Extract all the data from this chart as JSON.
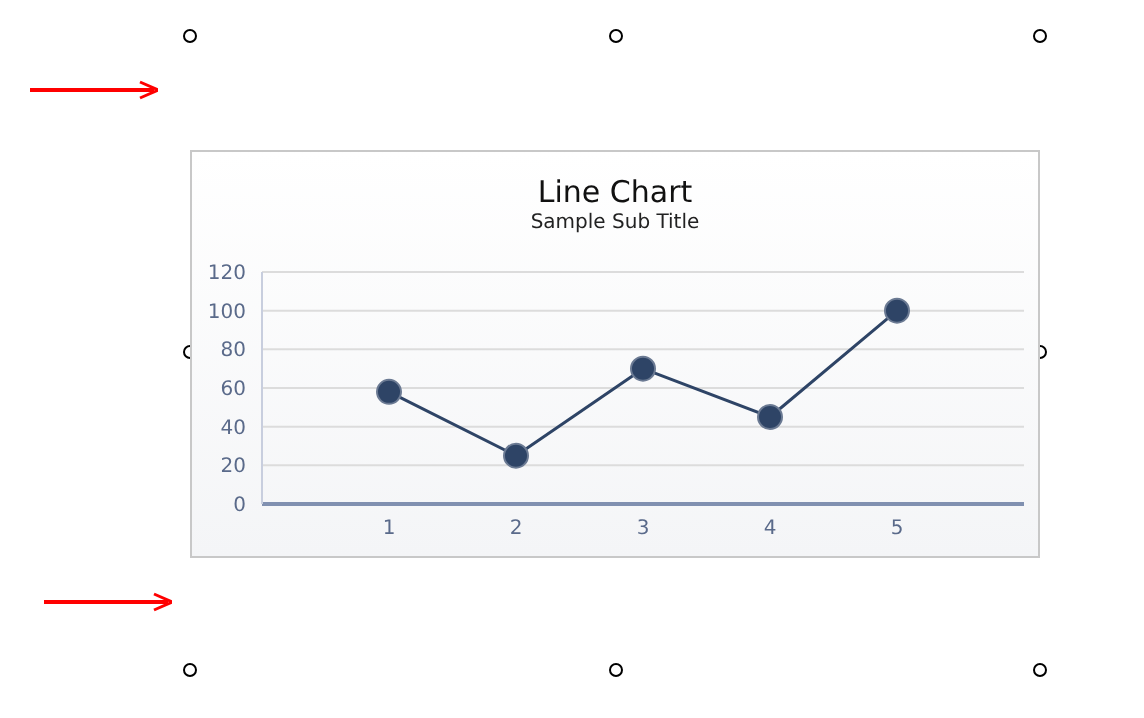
{
  "chart_data": {
    "type": "line",
    "title": "Line Chart",
    "subtitle": "Sample Sub Title",
    "x": [
      1,
      2,
      3,
      4,
      5
    ],
    "xlim": [
      0,
      6
    ],
    "xticks": [
      1,
      2,
      3,
      4,
      5
    ],
    "series": [
      {
        "color": "#2e4466",
        "values": [
          58,
          25,
          70,
          45,
          100
        ]
      }
    ],
    "ylim": [
      0,
      120
    ],
    "yticks": [
      0,
      20,
      40,
      60,
      80,
      100,
      120
    ],
    "grid": "y",
    "marker": "circle",
    "line_style": "solid"
  }
}
